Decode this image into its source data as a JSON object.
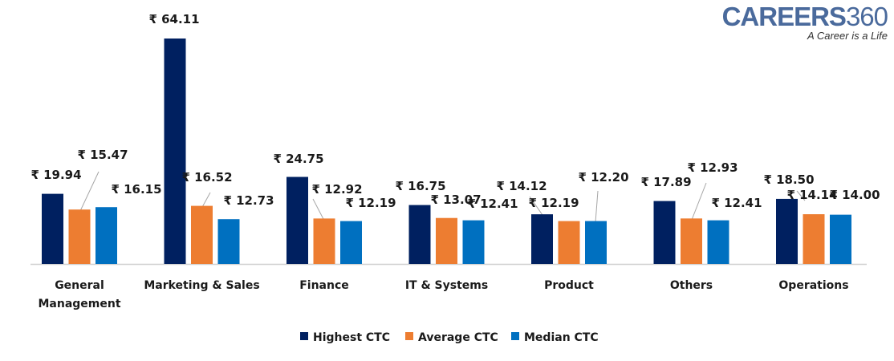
{
  "logo": {
    "brand": "CAREERS",
    "number": "360",
    "tagline": "A Career is a Life"
  },
  "chart_data": {
    "type": "bar",
    "title": "",
    "xlabel": "",
    "ylabel": "",
    "ylim": [
      0,
      65
    ],
    "grid": false,
    "legend_position": "bottom",
    "currency_prefix": "₹",
    "categories": [
      [
        "General",
        "Management"
      ],
      [
        "Marketing & Sales"
      ],
      [
        "Finance"
      ],
      [
        "IT & Systems"
      ],
      [
        "Product"
      ],
      [
        "Others"
      ],
      [
        "Operations"
      ]
    ],
    "series": [
      {
        "name": "Highest CTC",
        "color": "#002060",
        "values": [
          19.94,
          64.11,
          24.75,
          16.75,
          14.12,
          17.89,
          18.5
        ]
      },
      {
        "name": "Average CTC",
        "color": "#ED7D31",
        "values": [
          15.47,
          16.52,
          12.92,
          13.07,
          12.19,
          12.93,
          14.14
        ]
      },
      {
        "name": "Median CTC",
        "color": "#0070C0",
        "values": [
          16.15,
          12.73,
          12.19,
          12.41,
          12.2,
          12.41,
          14.0
        ]
      }
    ]
  }
}
